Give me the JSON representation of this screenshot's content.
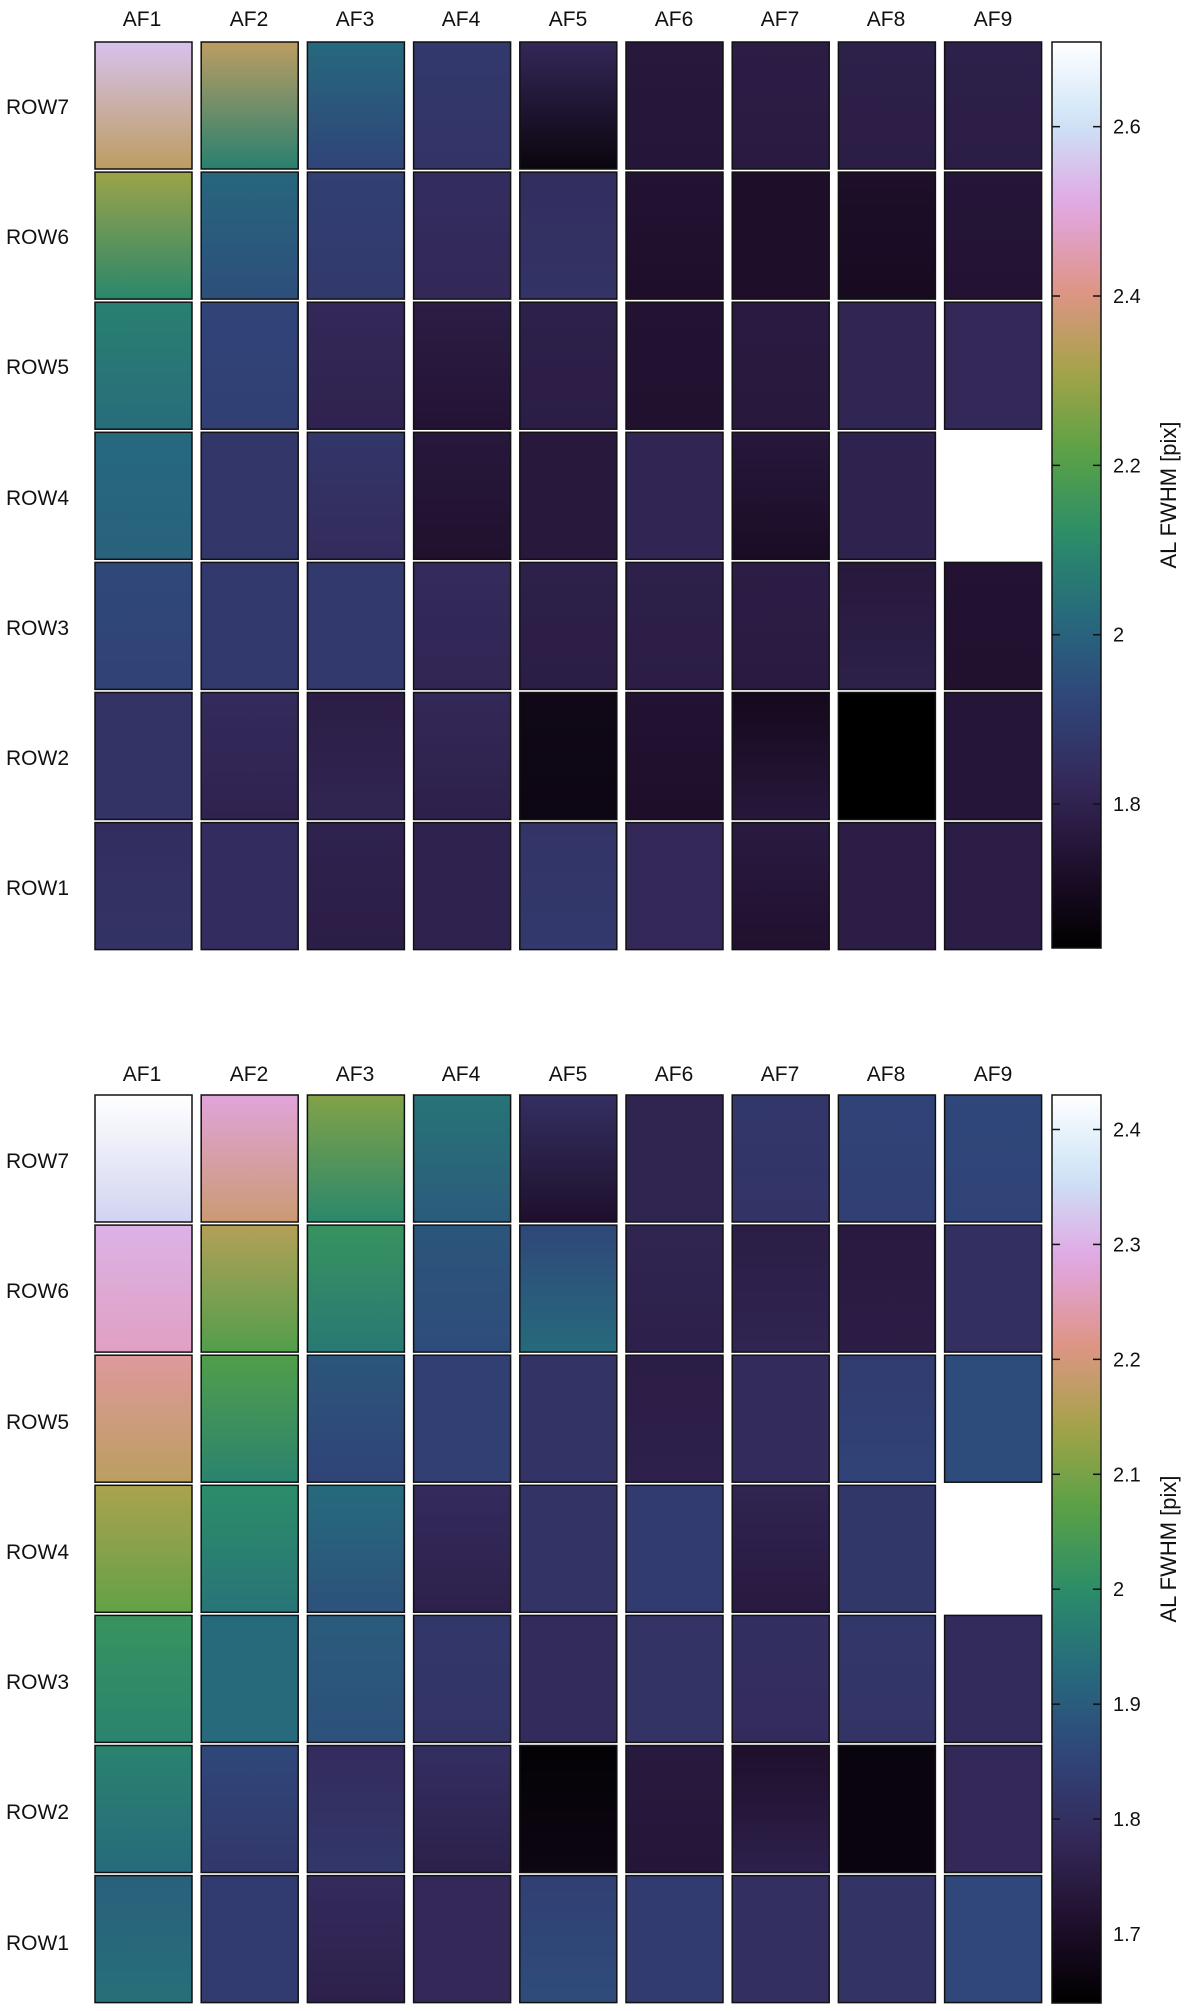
{
  "chart_data": [
    {
      "type": "heatmap",
      "title": "",
      "columns": [
        "AF1",
        "AF2",
        "AF3",
        "AF4",
        "AF5",
        "AF6",
        "AF7",
        "AF8",
        "AF9"
      ],
      "rows": [
        "ROW7",
        "ROW6",
        "ROW5",
        "ROW4",
        "ROW3",
        "ROW2",
        "ROW1"
      ],
      "colorbar": {
        "label": "AL FWHM [pix]",
        "range": [
          1.63,
          2.7
        ],
        "ticks": [
          1.8,
          2,
          2.2,
          2.4,
          2.6
        ],
        "tick_labels": [
          "1.8",
          "2",
          "2.2",
          "2.4",
          "2.6"
        ]
      },
      "cells_note": "each cell value = [top, bottom] AL FWHM within that CCD; null = no CCD",
      "cells": [
        [
          [
            2.55,
            2.35
          ],
          [
            2.35,
            2.08
          ],
          [
            2.02,
            1.92
          ],
          [
            1.88,
            1.86
          ],
          [
            1.82,
            1.66
          ],
          [
            1.76,
            1.75
          ],
          [
            1.78,
            1.77
          ],
          [
            1.79,
            1.78
          ],
          [
            1.79,
            1.78
          ]
        ],
        [
          [
            2.3,
            2.1
          ],
          [
            2.01,
            1.95
          ],
          [
            1.9,
            1.88
          ],
          [
            1.84,
            1.82
          ],
          [
            1.84,
            1.86
          ],
          [
            1.74,
            1.72
          ],
          [
            1.72,
            1.72
          ],
          [
            1.72,
            1.7
          ],
          [
            1.75,
            1.74
          ]
        ],
        [
          [
            2.08,
            2.03
          ],
          [
            1.92,
            1.9
          ],
          [
            1.82,
            1.8
          ],
          [
            1.78,
            1.74
          ],
          [
            1.79,
            1.78
          ],
          [
            1.74,
            1.73
          ],
          [
            1.77,
            1.76
          ],
          [
            1.81,
            1.81
          ],
          [
            1.82,
            1.82
          ]
        ],
        [
          [
            2.02,
            2.0
          ],
          [
            1.87,
            1.87
          ],
          [
            1.87,
            1.83
          ],
          [
            1.76,
            1.73
          ],
          [
            1.76,
            1.76
          ],
          [
            1.81,
            1.81
          ],
          [
            1.76,
            1.71
          ],
          [
            1.8,
            1.8
          ],
          null
        ],
        [
          [
            1.93,
            1.91
          ],
          [
            1.88,
            1.88
          ],
          [
            1.88,
            1.88
          ],
          [
            1.83,
            1.81
          ],
          [
            1.79,
            1.78
          ],
          [
            1.79,
            1.78
          ],
          [
            1.78,
            1.77
          ],
          [
            1.76,
            1.79
          ],
          [
            1.74,
            1.73
          ]
        ],
        [
          [
            1.86,
            1.86
          ],
          [
            1.83,
            1.8
          ],
          [
            1.78,
            1.81
          ],
          [
            1.82,
            1.79
          ],
          [
            1.68,
            1.67
          ],
          [
            1.74,
            1.72
          ],
          [
            1.69,
            1.76
          ],
          [
            1.63,
            1.63
          ],
          [
            1.75,
            1.75
          ]
        ],
        [
          [
            1.84,
            1.86
          ],
          [
            1.84,
            1.84
          ],
          [
            1.8,
            1.78
          ],
          [
            1.8,
            1.8
          ],
          [
            1.86,
            1.88
          ],
          [
            1.82,
            1.82
          ],
          [
            1.77,
            1.73
          ],
          [
            1.78,
            1.78
          ],
          [
            1.78,
            1.78
          ]
        ]
      ]
    },
    {
      "type": "heatmap",
      "title": "",
      "columns": [
        "AF1",
        "AF2",
        "AF3",
        "AF4",
        "AF5",
        "AF6",
        "AF7",
        "AF8",
        "AF9"
      ],
      "rows": [
        "ROW7",
        "ROW6",
        "ROW5",
        "ROW4",
        "ROW3",
        "ROW2",
        "ROW1"
      ],
      "colorbar": {
        "label": "AL FWHM [pix]",
        "range": [
          1.64,
          2.43
        ],
        "ticks": [
          1.7,
          1.8,
          1.9,
          2,
          2.1,
          2.2,
          2.3,
          2.4
        ],
        "tick_labels": [
          "1.7",
          "1.8",
          "1.9",
          "2",
          "2.1",
          "2.2",
          "2.3",
          "2.4"
        ]
      },
      "cells_note": "each cell value = [top, bottom] AL FWHM within that CCD; null = no CCD",
      "cells": [
        [
          [
            2.43,
            2.34
          ],
          [
            2.28,
            2.19
          ],
          [
            2.11,
            1.99
          ],
          [
            1.95,
            1.9
          ],
          [
            1.8,
            1.71
          ],
          [
            1.77,
            1.77
          ],
          [
            1.82,
            1.81
          ],
          [
            1.85,
            1.84
          ],
          [
            1.86,
            1.85
          ]
        ],
        [
          [
            2.3,
            2.26
          ],
          [
            2.16,
            2.06
          ],
          [
            2.02,
            1.96
          ],
          [
            1.89,
            1.87
          ],
          [
            1.86,
            1.93
          ],
          [
            1.77,
            1.76
          ],
          [
            1.75,
            1.77
          ],
          [
            1.74,
            1.75
          ],
          [
            1.8,
            1.8
          ]
        ],
        [
          [
            2.23,
            2.17
          ],
          [
            2.06,
            1.98
          ],
          [
            1.89,
            1.85
          ],
          [
            1.84,
            1.84
          ],
          [
            1.81,
            1.81
          ],
          [
            1.75,
            1.76
          ],
          [
            1.79,
            1.79
          ],
          [
            1.83,
            1.85
          ],
          [
            1.87,
            1.87
          ]
        ],
        [
          [
            2.15,
            2.08
          ],
          [
            2.0,
            1.95
          ],
          [
            1.93,
            1.88
          ],
          [
            1.79,
            1.76
          ],
          [
            1.81,
            1.81
          ],
          [
            1.83,
            1.83
          ],
          [
            1.77,
            1.74
          ],
          [
            1.82,
            1.82
          ],
          null
        ],
        [
          [
            2.02,
            1.98
          ],
          [
            1.93,
            1.93
          ],
          [
            1.9,
            1.88
          ],
          [
            1.82,
            1.81
          ],
          [
            1.79,
            1.79
          ],
          [
            1.81,
            1.81
          ],
          [
            1.8,
            1.79
          ],
          [
            1.82,
            1.81
          ],
          [
            1.79,
            1.79
          ]
        ],
        [
          [
            1.98,
            1.93
          ],
          [
            1.86,
            1.82
          ],
          [
            1.79,
            1.82
          ],
          [
            1.8,
            1.76
          ],
          [
            1.65,
            1.67
          ],
          [
            1.74,
            1.73
          ],
          [
            1.71,
            1.76
          ],
          [
            1.66,
            1.66
          ],
          [
            1.78,
            1.78
          ]
        ],
        [
          [
            1.91,
            1.94
          ],
          [
            1.83,
            1.83
          ],
          [
            1.79,
            1.76
          ],
          [
            1.78,
            1.78
          ],
          [
            1.84,
            1.87
          ],
          [
            1.83,
            1.83
          ],
          [
            1.8,
            1.8
          ],
          [
            1.81,
            1.81
          ],
          [
            1.86,
            1.86
          ]
        ]
      ]
    }
  ],
  "colors": {
    "stops": [
      "#000000",
      "#200f2d",
      "#34295a",
      "#30457a",
      "#26697d",
      "#2b8d69",
      "#59a146",
      "#a5a348",
      "#df9588",
      "#e1a6e3",
      "#cce3f6",
      "#ffffff"
    ]
  }
}
